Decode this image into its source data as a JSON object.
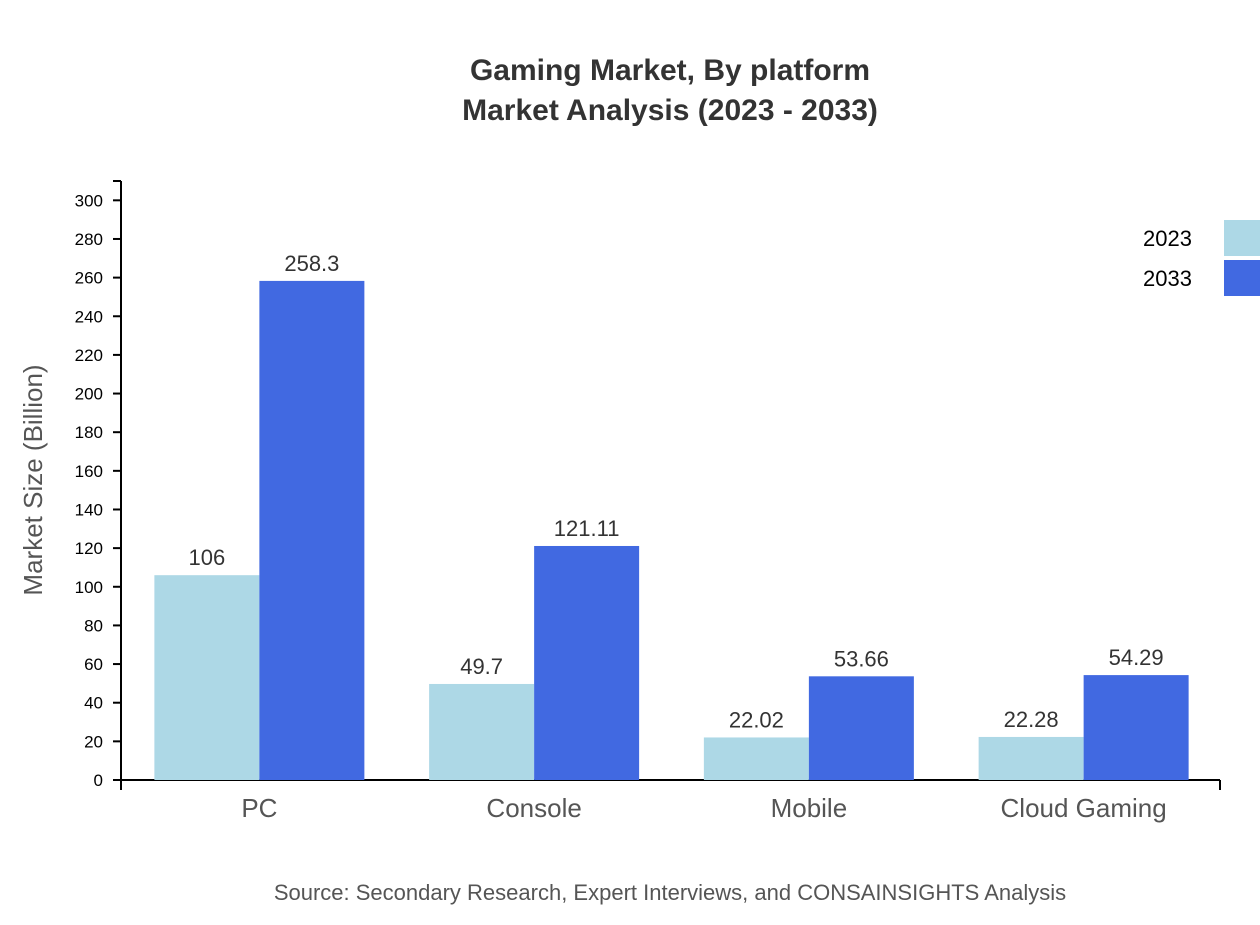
{
  "chart_data": {
    "type": "bar",
    "title": "Gaming Market, By platform",
    "subtitle": "Market Analysis (2023 - 2033)",
    "xlabel": "",
    "ylabel": "Market Size (Billion)",
    "ylim": [
      0,
      310
    ],
    "yticks": [
      0,
      20,
      40,
      60,
      80,
      100,
      120,
      140,
      160,
      180,
      200,
      220,
      240,
      260,
      280,
      300
    ],
    "grid": false,
    "legend_position": "top-right",
    "categories": [
      "PC",
      "Console",
      "Mobile",
      "Cloud Gaming"
    ],
    "series": [
      {
        "name": "2023",
        "color": "#ADD8E6",
        "values": [
          106,
          49.7,
          22.02,
          22.28
        ],
        "labels": [
          "106",
          "49.7",
          "22.02",
          "22.28"
        ]
      },
      {
        "name": "2033",
        "color": "#4169E1",
        "values": [
          258.3,
          121.11,
          53.66,
          54.29
        ],
        "labels": [
          "258.3",
          "121.11",
          "53.66",
          "54.29"
        ]
      }
    ],
    "source": "Source: Secondary Research, Expert Interviews, and CONSAINSIGHTS Analysis"
  }
}
